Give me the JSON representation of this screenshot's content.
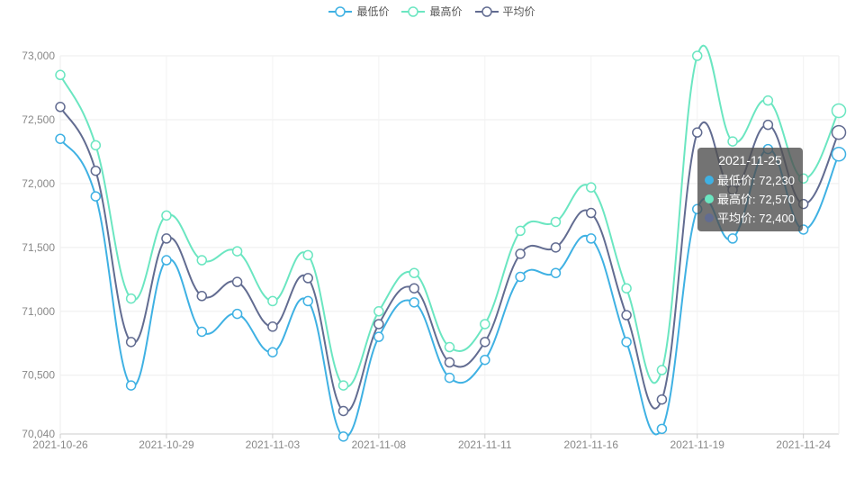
{
  "legend": [
    {
      "name": "最低价",
      "color": "#3fb1e3",
      "icon": "line-circle-icon"
    },
    {
      "name": "最高价",
      "color": "#6be6c1",
      "icon": "line-circle-icon"
    },
    {
      "name": "平均价",
      "color": "#626c91",
      "icon": "line-circle-icon"
    }
  ],
  "tooltip": {
    "date": "2021-11-25",
    "rows": [
      {
        "label": "最低价: 72,230",
        "color": "#3fb1e3"
      },
      {
        "label": "最高价: 72,570",
        "color": "#6be6c1"
      },
      {
        "label": "平均价: 72,400",
        "color": "#626c91"
      }
    ]
  },
  "chart_data": {
    "type": "line",
    "smooth": true,
    "title": "",
    "xlabel": "",
    "ylabel": "",
    "x": [
      "2021-10-26",
      "2021-10-27",
      "2021-10-28",
      "2021-10-29",
      "2021-11-01",
      "2021-11-02",
      "2021-11-03",
      "2021-11-04",
      "2021-11-05",
      "2021-11-08",
      "2021-11-09",
      "2021-11-10",
      "2021-11-11",
      "2021-11-12",
      "2021-11-15",
      "2021-11-16",
      "2021-11-17",
      "2021-11-18",
      "2021-11-19",
      "2021-11-22",
      "2021-11-23",
      "2021-11-24",
      "2021-11-25"
    ],
    "x_tick_labels": [
      "2021-10-26",
      "2021-10-29",
      "2021-11-03",
      "2021-11-08",
      "2021-11-11",
      "2021-11-16",
      "2021-11-19",
      "2021-11-24"
    ],
    "y_tick_labels": [
      "73,000",
      "72,500",
      "72,000",
      "71,500",
      "71,000",
      "70,500",
      "70,040"
    ],
    "ylim": [
      70040,
      73000
    ],
    "grid": true,
    "legend_position": "top-center",
    "series": [
      {
        "name": "最低价",
        "color": "#3fb1e3",
        "values": [
          72350,
          71900,
          70420,
          71400,
          70840,
          70980,
          70680,
          71080,
          70020,
          70800,
          71070,
          70480,
          70620,
          71270,
          71300,
          71570,
          70760,
          70080,
          71800,
          71570,
          72270,
          71640,
          72230
        ]
      },
      {
        "name": "最高价",
        "color": "#6be6c1",
        "values": [
          72850,
          72300,
          71100,
          71750,
          71400,
          71470,
          71080,
          71440,
          70420,
          71000,
          71300,
          70720,
          70900,
          71630,
          71700,
          71970,
          71180,
          70540,
          73000,
          72330,
          72650,
          72040,
          72570
        ]
      },
      {
        "name": "平均价",
        "color": "#626c91",
        "values": [
          72600,
          72100,
          70760,
          71570,
          71120,
          71230,
          70880,
          71260,
          70220,
          70900,
          71180,
          70600,
          70760,
          71450,
          71500,
          71770,
          70970,
          70310,
          72400,
          71950,
          72460,
          71840,
          72400
        ]
      }
    ],
    "highlighted_index": 22
  }
}
